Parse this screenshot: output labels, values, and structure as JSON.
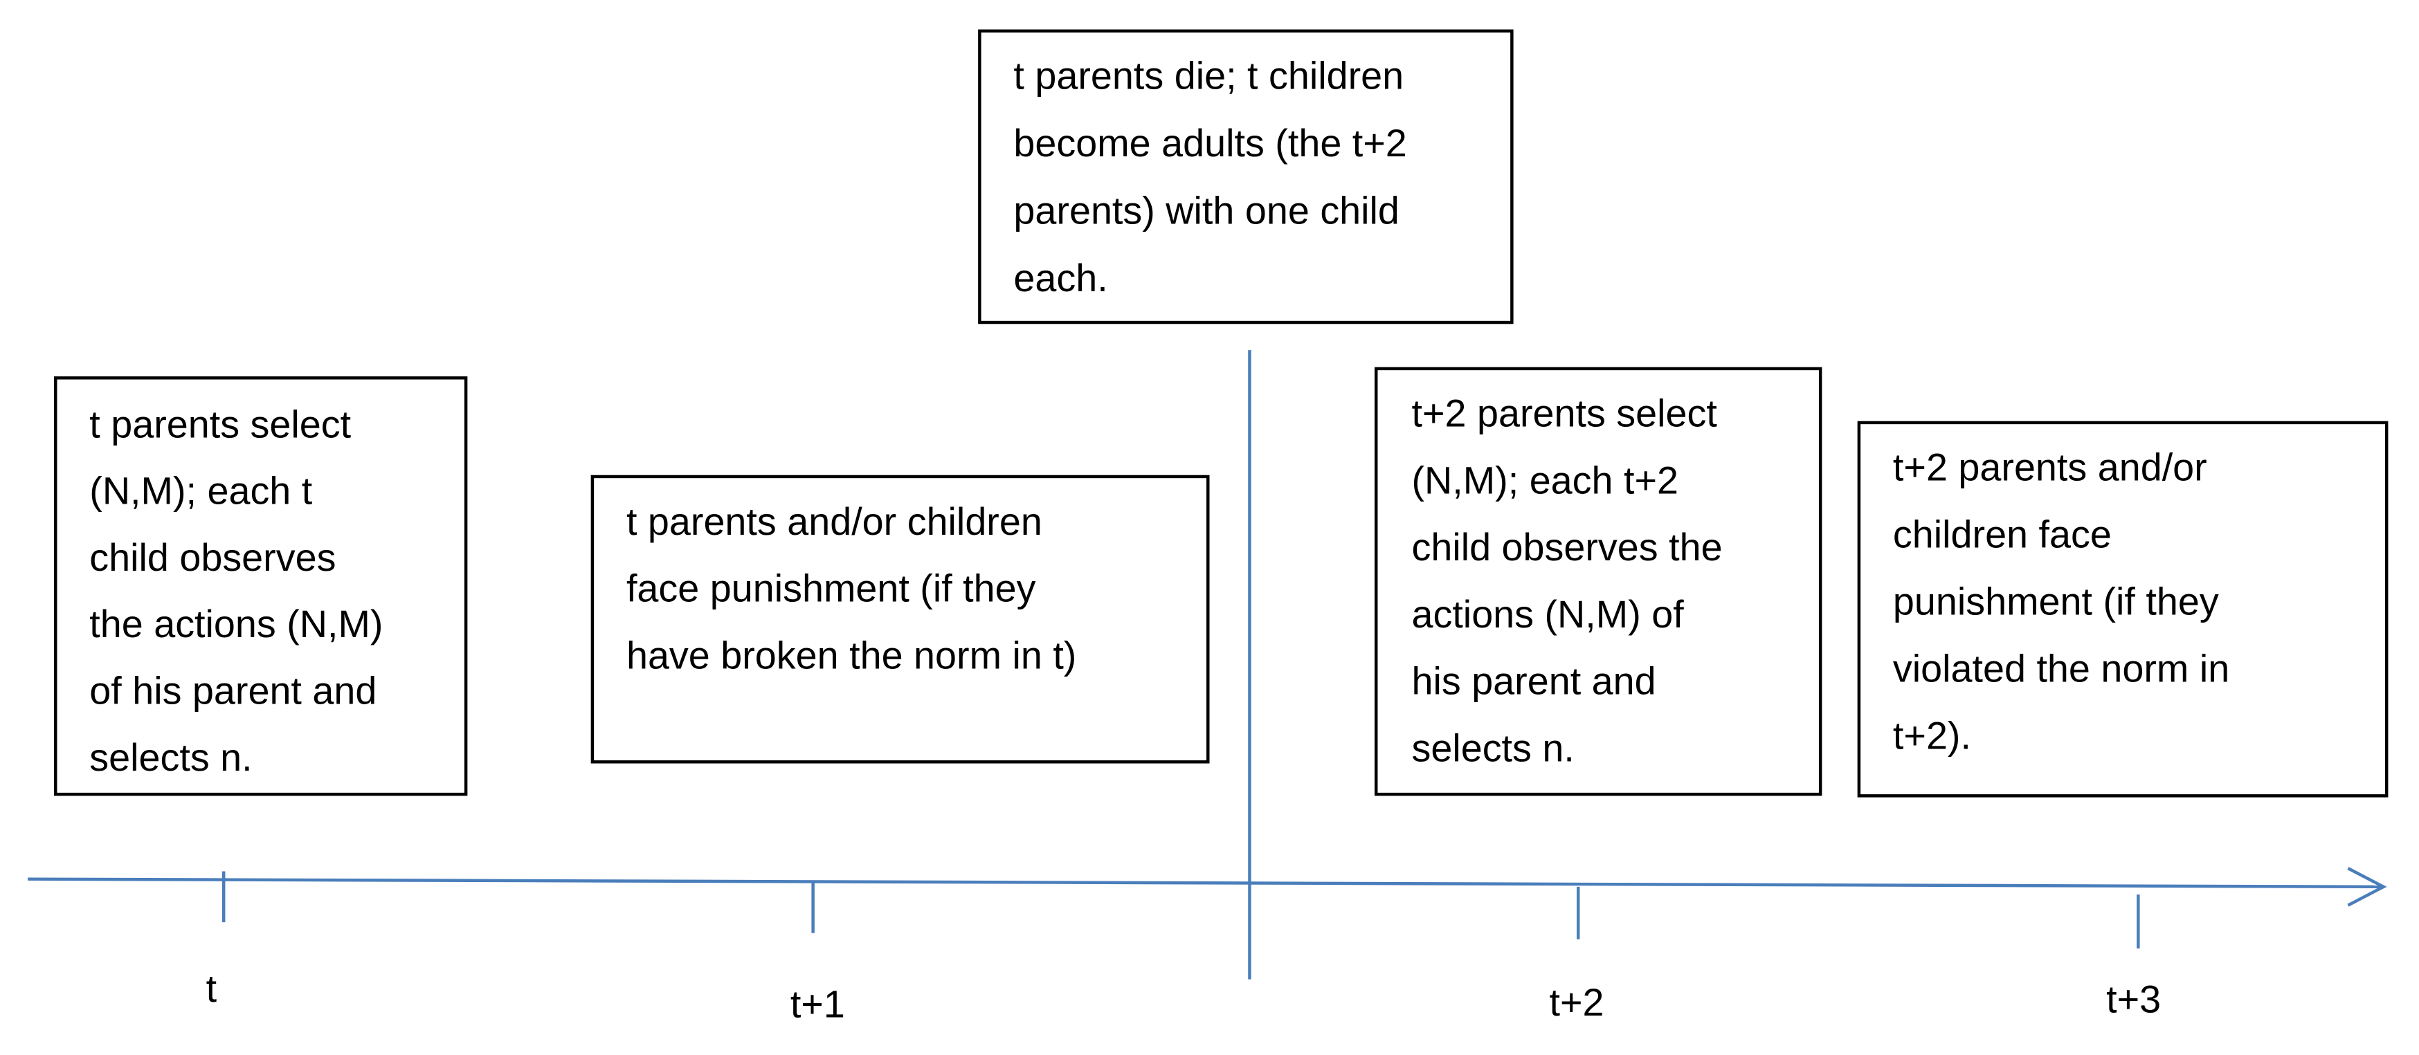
{
  "boxes": [
    {
      "lines": [
        "t parents select",
        "(N,M); each t",
        "child observes",
        "the actions (N,M)",
        "of his parent and",
        "selects n."
      ]
    },
    {
      "lines": [
        "t parents and/or children",
        "face punishment (if they",
        "have broken the norm in t)"
      ]
    },
    {
      "lines": [
        "t parents die; t children",
        "become adults (the t+2",
        "parents) with one child",
        "each."
      ]
    },
    {
      "lines": [
        "t+2 parents select",
        "(N,M); each t+2",
        "child observes the",
        "actions (N,M) of",
        "his parent and",
        "selects n."
      ]
    },
    {
      "lines": [
        "t+2 parents and/or",
        "children face",
        "punishment (if they",
        "violated the norm in",
        "t+2)."
      ]
    }
  ],
  "timeline": {
    "labels": [
      "t",
      "t+1",
      "t+2",
      "t+3"
    ]
  }
}
